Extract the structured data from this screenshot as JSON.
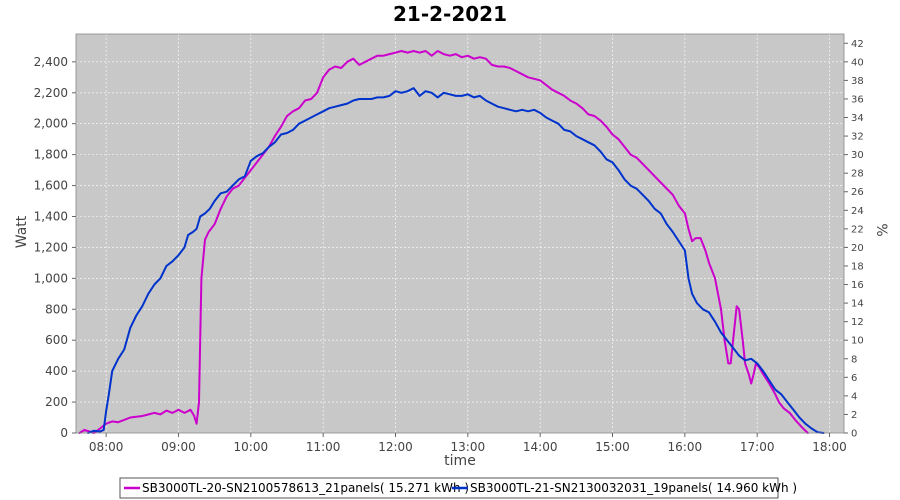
{
  "chart_data": {
    "type": "line",
    "title": "21-2-2021",
    "xlabel": "time",
    "ylabel": "Watt",
    "y2label": "%",
    "x_ticks": [
      "08:00",
      "09:00",
      "10:00",
      "11:00",
      "12:00",
      "13:00",
      "14:00",
      "15:00",
      "16:00",
      "17:00",
      "18:00"
    ],
    "y_ticks": [
      "0",
      "200",
      "400",
      "600",
      "800",
      "1,000",
      "1,200",
      "1,400",
      "1,600",
      "1,800",
      "2,000",
      "2,200",
      "2,400"
    ],
    "y2_ticks": [
      "0",
      "2",
      "4",
      "6",
      "8",
      "10",
      "12",
      "14",
      "16",
      "18",
      "20",
      "22",
      "24",
      "26",
      "28",
      "30",
      "32",
      "34",
      "36",
      "38",
      "40",
      "42"
    ],
    "xlim": [
      "07:35",
      "18:12"
    ],
    "ylim": [
      0,
      2580
    ],
    "y2lim": [
      0,
      43
    ],
    "grid": true,
    "legend_position": "bottom",
    "series": [
      {
        "name": "SB3000TL-20-SN2100578613_21panels( 15.271 kWh )",
        "color": "#cc00cc",
        "points": [
          [
            "07:38",
            0
          ],
          [
            "07:42",
            20
          ],
          [
            "07:46",
            10
          ],
          [
            "07:50",
            0
          ],
          [
            "07:55",
            30
          ],
          [
            "08:00",
            60
          ],
          [
            "08:05",
            75
          ],
          [
            "08:10",
            70
          ],
          [
            "08:20",
            100
          ],
          [
            "08:30",
            110
          ],
          [
            "08:40",
            130
          ],
          [
            "08:45",
            120
          ],
          [
            "08:50",
            145
          ],
          [
            "08:55",
            130
          ],
          [
            "09:00",
            150
          ],
          [
            "09:05",
            130
          ],
          [
            "09:10",
            150
          ],
          [
            "09:13",
            110
          ],
          [
            "09:15",
            60
          ],
          [
            "09:17",
            200
          ],
          [
            "09:19",
            1000
          ],
          [
            "09:22",
            1250
          ],
          [
            "09:25",
            1300
          ],
          [
            "09:30",
            1350
          ],
          [
            "09:35",
            1450
          ],
          [
            "09:40",
            1530
          ],
          [
            "09:45",
            1580
          ],
          [
            "09:50",
            1600
          ],
          [
            "09:55",
            1650
          ],
          [
            "10:00",
            1700
          ],
          [
            "10:05",
            1750
          ],
          [
            "10:10",
            1800
          ],
          [
            "10:15",
            1850
          ],
          [
            "10:20",
            1920
          ],
          [
            "10:25",
            1980
          ],
          [
            "10:30",
            2050
          ],
          [
            "10:35",
            2080
          ],
          [
            "10:40",
            2100
          ],
          [
            "10:45",
            2150
          ],
          [
            "10:50",
            2160
          ],
          [
            "10:55",
            2200
          ],
          [
            "11:00",
            2300
          ],
          [
            "11:05",
            2350
          ],
          [
            "11:10",
            2370
          ],
          [
            "11:15",
            2360
          ],
          [
            "11:20",
            2400
          ],
          [
            "11:25",
            2420
          ],
          [
            "11:30",
            2380
          ],
          [
            "11:35",
            2400
          ],
          [
            "11:40",
            2420
          ],
          [
            "11:45",
            2440
          ],
          [
            "11:50",
            2440
          ],
          [
            "11:55",
            2450
          ],
          [
            "12:00",
            2460
          ],
          [
            "12:05",
            2470
          ],
          [
            "12:10",
            2460
          ],
          [
            "12:15",
            2470
          ],
          [
            "12:20",
            2460
          ],
          [
            "12:25",
            2470
          ],
          [
            "12:30",
            2440
          ],
          [
            "12:35",
            2470
          ],
          [
            "12:40",
            2450
          ],
          [
            "12:45",
            2440
          ],
          [
            "12:50",
            2450
          ],
          [
            "12:55",
            2430
          ],
          [
            "13:00",
            2440
          ],
          [
            "13:05",
            2420
          ],
          [
            "13:10",
            2430
          ],
          [
            "13:15",
            2420
          ],
          [
            "13:20",
            2380
          ],
          [
            "13:25",
            2370
          ],
          [
            "13:30",
            2370
          ],
          [
            "13:35",
            2360
          ],
          [
            "13:40",
            2340
          ],
          [
            "13:45",
            2320
          ],
          [
            "13:50",
            2300
          ],
          [
            "13:55",
            2290
          ],
          [
            "14:00",
            2280
          ],
          [
            "14:05",
            2250
          ],
          [
            "14:10",
            2220
          ],
          [
            "14:15",
            2200
          ],
          [
            "14:20",
            2180
          ],
          [
            "14:25",
            2150
          ],
          [
            "14:30",
            2130
          ],
          [
            "14:35",
            2100
          ],
          [
            "14:40",
            2060
          ],
          [
            "14:45",
            2050
          ],
          [
            "14:50",
            2020
          ],
          [
            "14:55",
            1980
          ],
          [
            "15:00",
            1930
          ],
          [
            "15:05",
            1900
          ],
          [
            "15:10",
            1850
          ],
          [
            "15:15",
            1800
          ],
          [
            "15:20",
            1780
          ],
          [
            "15:30",
            1700
          ],
          [
            "15:40",
            1620
          ],
          [
            "15:50",
            1540
          ],
          [
            "15:55",
            1470
          ],
          [
            "16:00",
            1420
          ],
          [
            "16:03",
            1320
          ],
          [
            "16:06",
            1240
          ],
          [
            "16:09",
            1260
          ],
          [
            "16:13",
            1260
          ],
          [
            "16:17",
            1180
          ],
          [
            "16:20",
            1100
          ],
          [
            "16:25",
            1000
          ],
          [
            "16:30",
            800
          ],
          [
            "16:33",
            600
          ],
          [
            "16:36",
            450
          ],
          [
            "16:38",
            450
          ],
          [
            "16:40",
            600
          ],
          [
            "16:43",
            820
          ],
          [
            "16:45",
            800
          ],
          [
            "16:48",
            600
          ],
          [
            "16:50",
            450
          ],
          [
            "16:53",
            380
          ],
          [
            "16:55",
            320
          ],
          [
            "16:57",
            380
          ],
          [
            "16:59",
            450
          ],
          [
            "17:02",
            420
          ],
          [
            "17:05",
            380
          ],
          [
            "17:10",
            320
          ],
          [
            "17:15",
            250
          ],
          [
            "17:18",
            200
          ],
          [
            "17:22",
            160
          ],
          [
            "17:27",
            130
          ],
          [
            "17:32",
            80
          ],
          [
            "17:38",
            30
          ],
          [
            "17:42",
            0
          ]
        ]
      },
      {
        "name": "SB3000TL-21-SN2130032031_19panels( 14.960 kWh )",
        "color": "#0033cc",
        "points": [
          [
            "07:45",
            0
          ],
          [
            "07:50",
            15
          ],
          [
            "07:55",
            10
          ],
          [
            "07:58",
            20
          ],
          [
            "08:00",
            140
          ],
          [
            "08:02",
            240
          ],
          [
            "08:05",
            400
          ],
          [
            "08:10",
            480
          ],
          [
            "08:15",
            540
          ],
          [
            "08:20",
            680
          ],
          [
            "08:25",
            760
          ],
          [
            "08:30",
            820
          ],
          [
            "08:35",
            900
          ],
          [
            "08:40",
            960
          ],
          [
            "08:45",
            1000
          ],
          [
            "08:50",
            1080
          ],
          [
            "08:55",
            1110
          ],
          [
            "09:00",
            1150
          ],
          [
            "09:05",
            1200
          ],
          [
            "09:08",
            1280
          ],
          [
            "09:12",
            1300
          ],
          [
            "09:15",
            1320
          ],
          [
            "09:18",
            1400
          ],
          [
            "09:22",
            1420
          ],
          [
            "09:26",
            1450
          ],
          [
            "09:30",
            1500
          ],
          [
            "09:35",
            1550
          ],
          [
            "09:40",
            1560
          ],
          [
            "09:45",
            1600
          ],
          [
            "09:50",
            1640
          ],
          [
            "09:55",
            1660
          ],
          [
            "10:00",
            1760
          ],
          [
            "10:05",
            1790
          ],
          [
            "10:10",
            1810
          ],
          [
            "10:15",
            1850
          ],
          [
            "10:20",
            1880
          ],
          [
            "10:25",
            1930
          ],
          [
            "10:30",
            1940
          ],
          [
            "10:35",
            1960
          ],
          [
            "10:40",
            2000
          ],
          [
            "10:45",
            2020
          ],
          [
            "10:50",
            2040
          ],
          [
            "10:55",
            2060
          ],
          [
            "11:00",
            2080
          ],
          [
            "11:05",
            2100
          ],
          [
            "11:10",
            2110
          ],
          [
            "11:15",
            2120
          ],
          [
            "11:20",
            2130
          ],
          [
            "11:25",
            2150
          ],
          [
            "11:30",
            2160
          ],
          [
            "11:35",
            2160
          ],
          [
            "11:40",
            2160
          ],
          [
            "11:45",
            2170
          ],
          [
            "11:50",
            2170
          ],
          [
            "11:55",
            2180
          ],
          [
            "12:00",
            2210
          ],
          [
            "12:05",
            2200
          ],
          [
            "12:10",
            2210
          ],
          [
            "12:15",
            2230
          ],
          [
            "12:20",
            2180
          ],
          [
            "12:25",
            2210
          ],
          [
            "12:30",
            2200
          ],
          [
            "12:35",
            2170
          ],
          [
            "12:40",
            2200
          ],
          [
            "12:45",
            2190
          ],
          [
            "12:50",
            2180
          ],
          [
            "12:55",
            2180
          ],
          [
            "13:00",
            2190
          ],
          [
            "13:05",
            2170
          ],
          [
            "13:10",
            2180
          ],
          [
            "13:15",
            2150
          ],
          [
            "13:20",
            2130
          ],
          [
            "13:25",
            2110
          ],
          [
            "13:30",
            2100
          ],
          [
            "13:35",
            2090
          ],
          [
            "13:40",
            2080
          ],
          [
            "13:45",
            2090
          ],
          [
            "13:50",
            2080
          ],
          [
            "13:55",
            2090
          ],
          [
            "14:00",
            2070
          ],
          [
            "14:05",
            2040
          ],
          [
            "14:10",
            2020
          ],
          [
            "14:15",
            2000
          ],
          [
            "14:20",
            1960
          ],
          [
            "14:25",
            1950
          ],
          [
            "14:30",
            1920
          ],
          [
            "14:35",
            1900
          ],
          [
            "14:40",
            1880
          ],
          [
            "14:45",
            1860
          ],
          [
            "14:50",
            1820
          ],
          [
            "14:55",
            1770
          ],
          [
            "15:00",
            1750
          ],
          [
            "15:05",
            1700
          ],
          [
            "15:10",
            1640
          ],
          [
            "15:15",
            1600
          ],
          [
            "15:20",
            1580
          ],
          [
            "15:25",
            1540
          ],
          [
            "15:30",
            1500
          ],
          [
            "15:35",
            1450
          ],
          [
            "15:40",
            1420
          ],
          [
            "15:45",
            1350
          ],
          [
            "15:50",
            1300
          ],
          [
            "15:55",
            1240
          ],
          [
            "16:00",
            1180
          ],
          [
            "16:03",
            1000
          ],
          [
            "16:06",
            900
          ],
          [
            "16:10",
            840
          ],
          [
            "16:15",
            800
          ],
          [
            "16:20",
            780
          ],
          [
            "16:25",
            720
          ],
          [
            "16:30",
            650
          ],
          [
            "16:35",
            600
          ],
          [
            "16:40",
            550
          ],
          [
            "16:45",
            500
          ],
          [
            "16:50",
            470
          ],
          [
            "16:55",
            480
          ],
          [
            "17:00",
            450
          ],
          [
            "17:05",
            400
          ],
          [
            "17:10",
            340
          ],
          [
            "17:15",
            280
          ],
          [
            "17:20",
            250
          ],
          [
            "17:25",
            200
          ],
          [
            "17:30",
            150
          ],
          [
            "17:35",
            100
          ],
          [
            "17:40",
            60
          ],
          [
            "17:45",
            30
          ],
          [
            "17:50",
            5
          ],
          [
            "17:55",
            0
          ]
        ]
      }
    ]
  }
}
